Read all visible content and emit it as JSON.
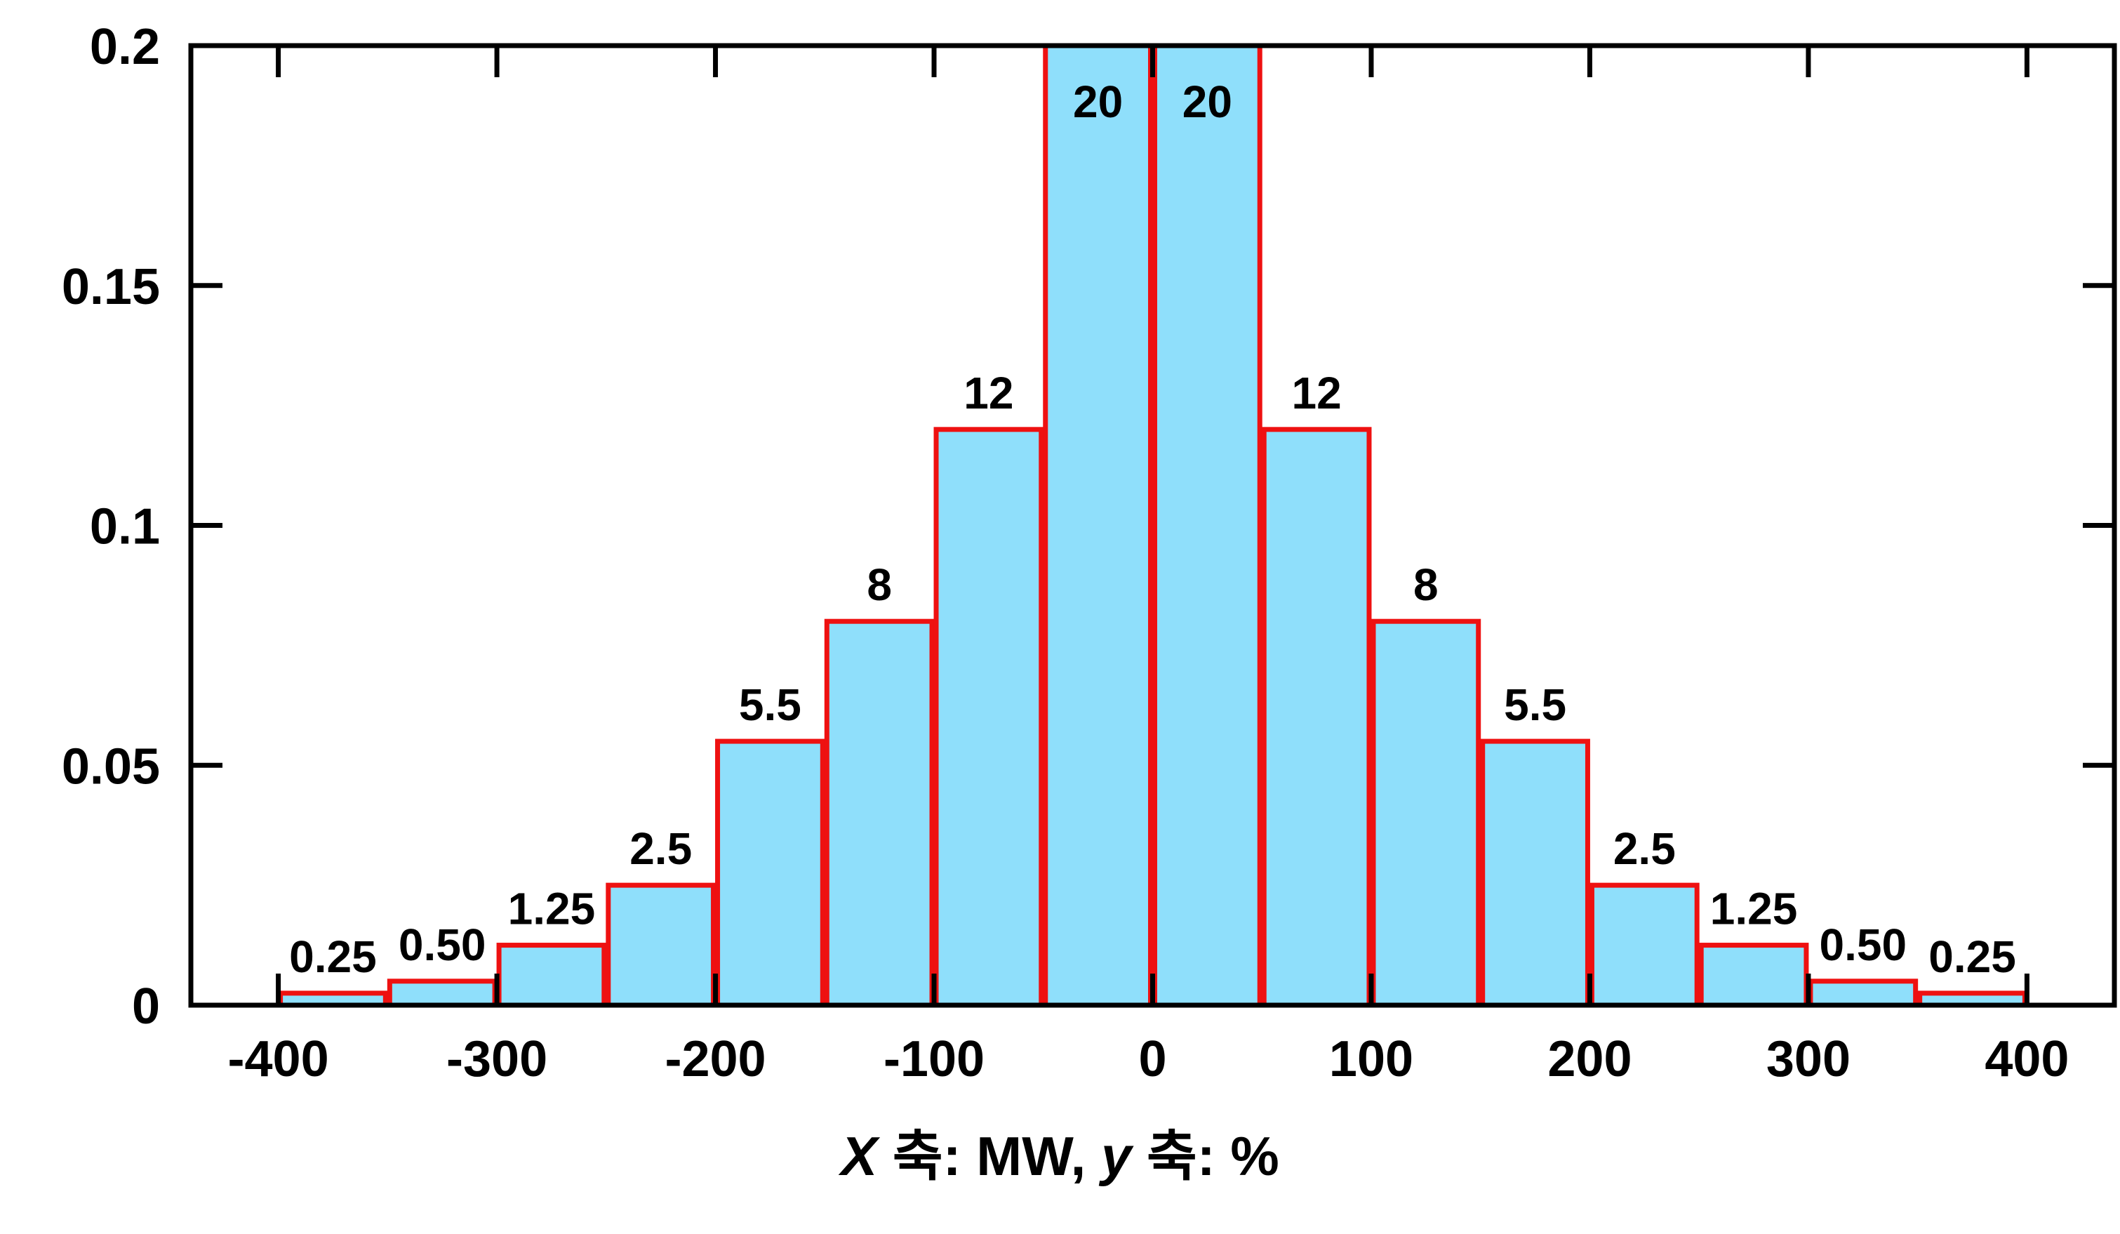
{
  "chart_data": {
    "type": "bar",
    "bins": [
      {
        "from": -400,
        "to": -350,
        "value": 0.0025,
        "label": "0.25"
      },
      {
        "from": -350,
        "to": -300,
        "value": 0.005,
        "label": "0.50"
      },
      {
        "from": -300,
        "to": -250,
        "value": 0.0125,
        "label": "1.25"
      },
      {
        "from": -250,
        "to": -200,
        "value": 0.025,
        "label": "2.5"
      },
      {
        "from": -200,
        "to": -150,
        "value": 0.055,
        "label": "5.5"
      },
      {
        "from": -150,
        "to": -100,
        "value": 0.08,
        "label": "8"
      },
      {
        "from": -100,
        "to": -50,
        "value": 0.12,
        "label": "12"
      },
      {
        "from": -50,
        "to": 0,
        "value": 0.2,
        "label": "20"
      },
      {
        "from": 0,
        "to": 50,
        "value": 0.2,
        "label": "20"
      },
      {
        "from": 50,
        "to": 100,
        "value": 0.12,
        "label": "12"
      },
      {
        "from": 100,
        "to": 150,
        "value": 0.08,
        "label": "8"
      },
      {
        "from": 150,
        "to": 200,
        "value": 0.055,
        "label": "5.5"
      },
      {
        "from": 200,
        "to": 250,
        "value": 0.025,
        "label": "2.5"
      },
      {
        "from": 250,
        "to": 300,
        "value": 0.0125,
        "label": "1.25"
      },
      {
        "from": 300,
        "to": 350,
        "value": 0.005,
        "label": "0.50"
      },
      {
        "from": 350,
        "to": 400,
        "value": 0.0025,
        "label": "0.25"
      }
    ],
    "xlim": [
      -440,
      440
    ],
    "ylim": [
      0,
      0.2
    ],
    "xticks": [
      -400,
      -300,
      -200,
      -100,
      0,
      100,
      200,
      300,
      400
    ],
    "xtick_labels": [
      "-400",
      "-300",
      "-200",
      "-100",
      "0",
      "100",
      "200",
      "300",
      "400"
    ],
    "yticks": [
      0,
      0.05,
      0.1,
      0.15,
      0.2
    ],
    "ytick_labels": [
      "0",
      "0.05",
      "0.1",
      "0.15",
      "0.2"
    ],
    "xlabel": {
      "var_x": "X",
      "part1": " 축: MW, ",
      "var_y": "y",
      "part2": " 축: %"
    },
    "ylabel": "",
    "grid": false,
    "colors": {
      "bar_fill": "#8fdffb",
      "bar_edge": "#ee1111",
      "axis": "#000000"
    }
  }
}
